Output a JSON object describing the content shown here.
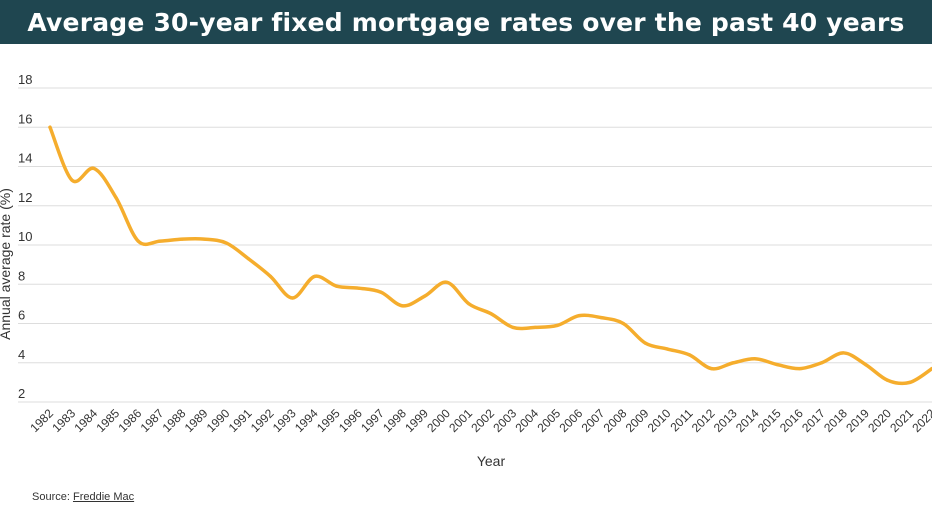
{
  "header": {
    "title": "Average 30-year fixed mortgage rates over the past 40 years"
  },
  "colors": {
    "header_bg": "#1f4650",
    "line": "#f5ad2d",
    "grid": "#dddddd"
  },
  "source": {
    "prefix": "Source: ",
    "link": "Freddie Mac"
  },
  "chart_data": {
    "type": "line",
    "title": "Average 30-year fixed mortgage rates over the past 40 years",
    "xlabel": "Year",
    "ylabel": "Annual average rate (%)",
    "ylim": [
      2,
      18
    ],
    "yticks": [
      2,
      4,
      6,
      8,
      10,
      12,
      14,
      16,
      18
    ],
    "grid": true,
    "x": [
      "1982",
      "1983",
      "1984",
      "1985",
      "1986",
      "1987",
      "1988",
      "1989",
      "1990",
      "1991",
      "1992",
      "1993",
      "1994",
      "1995",
      "1996",
      "1997",
      "1998",
      "1999",
      "2000",
      "2001",
      "2002",
      "2003",
      "2004",
      "2005",
      "2006",
      "2007",
      "2008",
      "2009",
      "2010",
      "2011",
      "2012",
      "2013",
      "2014",
      "2015",
      "2016",
      "2017",
      "2018",
      "2019",
      "2020",
      "2021",
      "2022"
    ],
    "series": [
      {
        "name": "Annual average rate (%)",
        "values": [
          16.0,
          13.3,
          13.9,
          12.4,
          10.2,
          10.2,
          10.3,
          10.3,
          10.1,
          9.3,
          8.4,
          7.3,
          8.4,
          7.9,
          7.8,
          7.6,
          6.9,
          7.4,
          8.1,
          7.0,
          6.5,
          5.8,
          5.8,
          5.9,
          6.4,
          6.3,
          6.0,
          5.0,
          4.7,
          4.4,
          3.7,
          4.0,
          4.2,
          3.9,
          3.7,
          4.0,
          4.5,
          3.9,
          3.1,
          3.0,
          3.7
        ]
      }
    ]
  }
}
